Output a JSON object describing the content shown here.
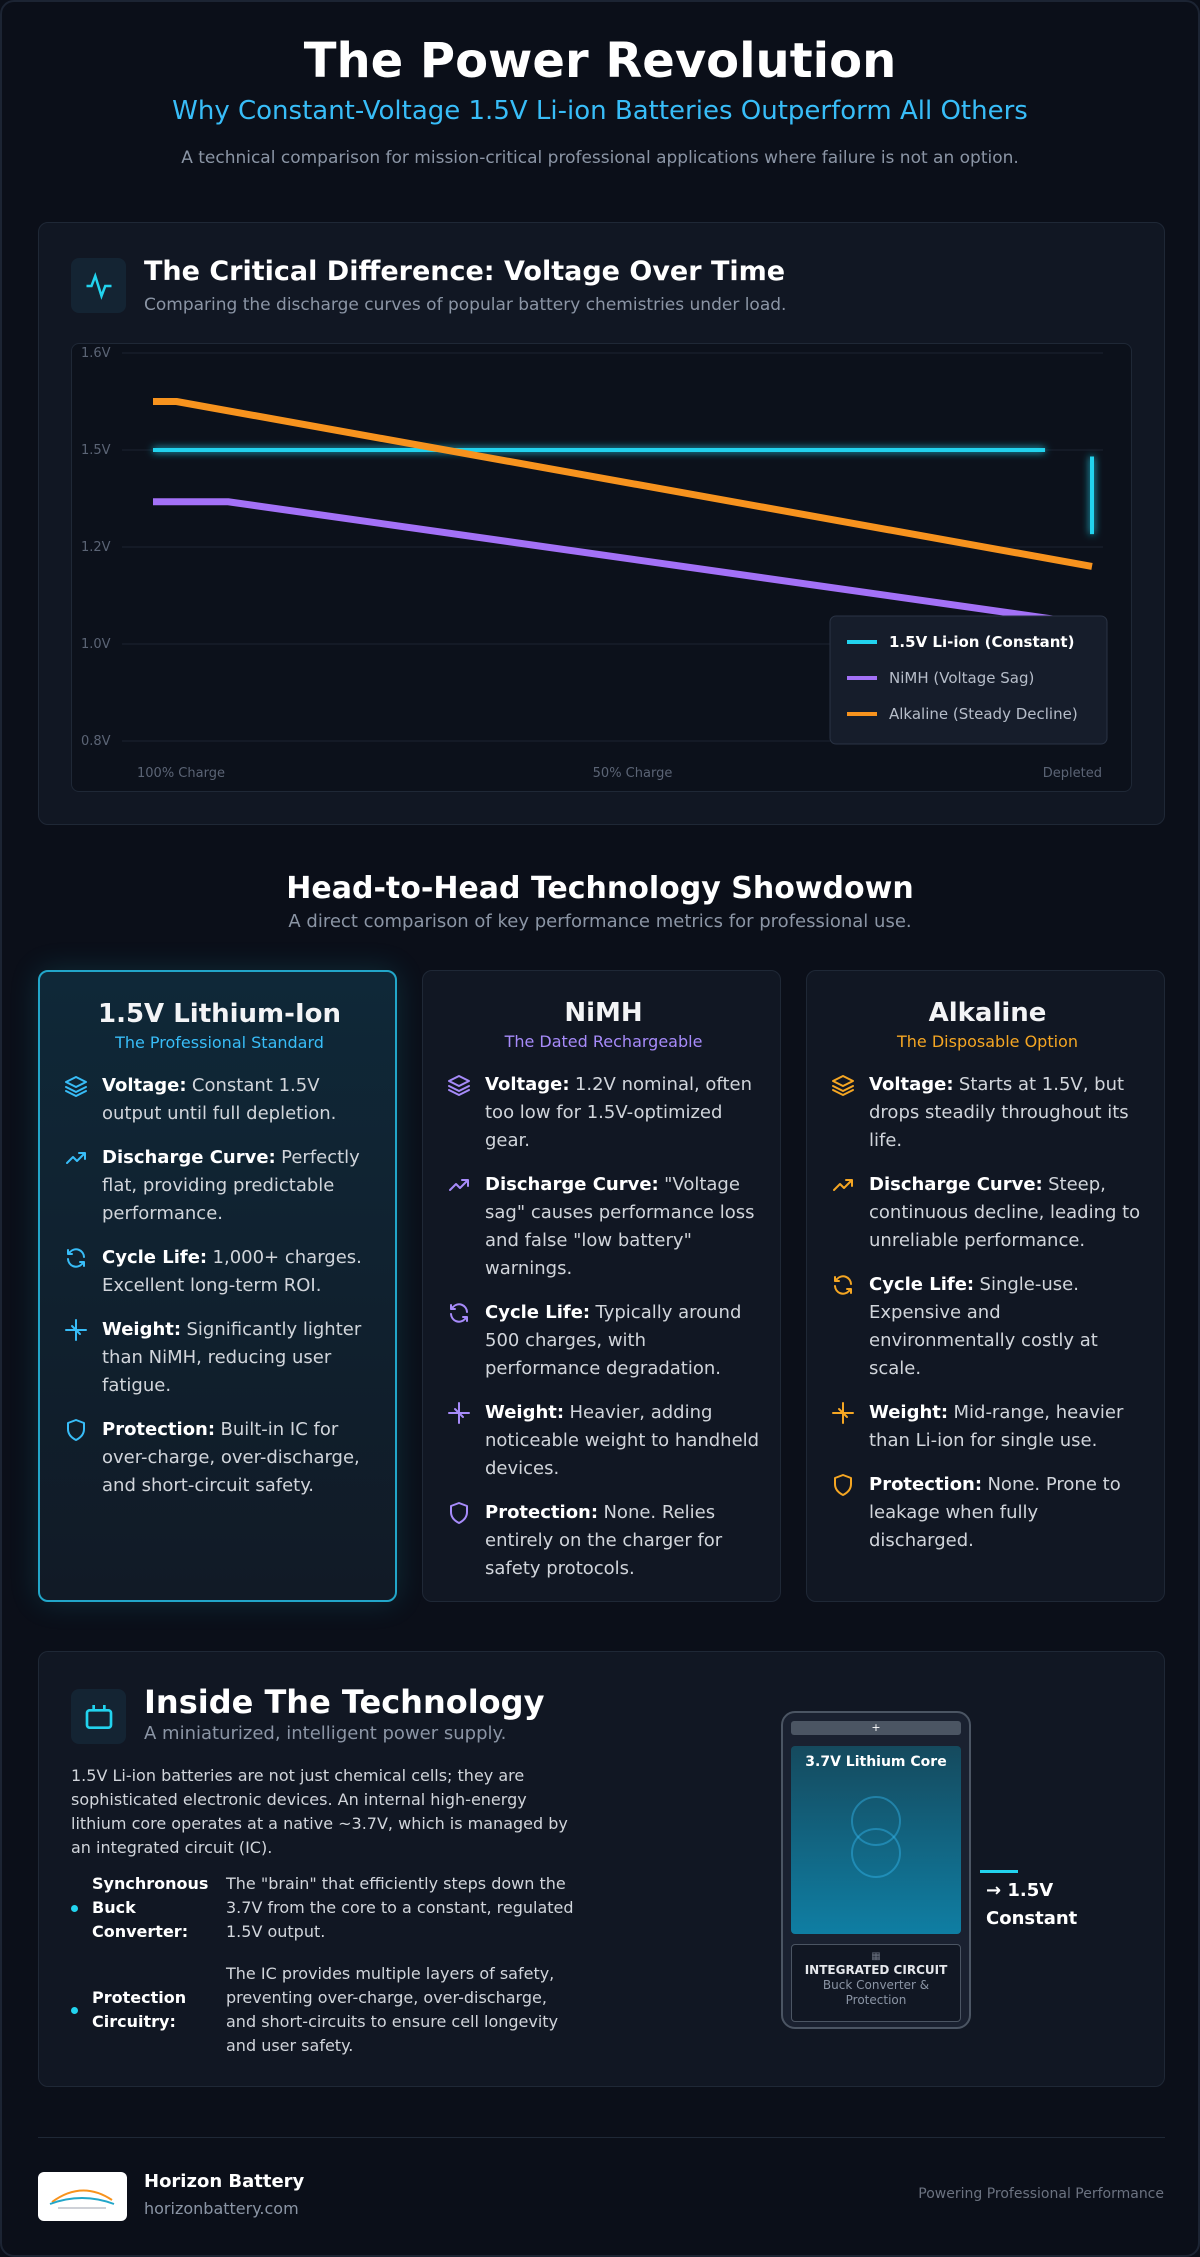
{
  "header": {
    "title": "The Power Revolution",
    "subtitle": "Why Constant-Voltage 1.5V Li-ion Batteries Outperform All Others",
    "tagline": "A technical comparison for mission-critical professional applications where failure is not an option."
  },
  "chart_section": {
    "title": "The Critical Difference: Voltage Over Time",
    "subtitle": "Comparing the discharge curves of popular battery chemistries under load."
  },
  "chart_data": {
    "type": "line",
    "xlim": [
      100,
      0
    ],
    "xticks": [
      {
        "value": 100,
        "label": "100% Charge"
      },
      {
        "value": 50,
        "label": "50% Charge"
      },
      {
        "value": 0,
        "label": "Depleted"
      }
    ],
    "ylim": [
      0.8,
      1.6
    ],
    "yticks": [
      {
        "value": 0.8,
        "label": "0.8V"
      },
      {
        "value": 1.0,
        "label": "1.0V"
      },
      {
        "value": 1.2,
        "label": "1.2V"
      },
      {
        "value": 1.5,
        "label": "1.5V"
      },
      {
        "value": 1.6,
        "label": "1.6V"
      }
    ],
    "grid": true,
    "legend": "lower right",
    "series": [
      {
        "name": "1.5V Li-ion (Constant)",
        "color": "#22d3ee",
        "x": [
          100,
          5,
          3,
          0,
          0
        ],
        "values": [
          1.5,
          1.5,
          null,
          1.48,
          1.24
        ]
      },
      {
        "name": "NiMH (Voltage Sag)",
        "color": "#a371f7",
        "x": [
          100,
          92,
          0
        ],
        "values": [
          1.34,
          1.34,
          1.04
        ]
      },
      {
        "name": "Alkaline (Steady Decline)",
        "color": "#f7931e",
        "x": [
          100,
          97.5,
          0
        ],
        "values": [
          1.55,
          1.55,
          1.16
        ]
      }
    ]
  },
  "showdown": {
    "title": "Head-to-Head Technology Showdown",
    "subtitle": "A direct comparison of key performance metrics for professional use.",
    "cards": [
      {
        "title": "1.5V Lithium-Ion",
        "subtitle": "The Professional Standard",
        "color": "#38bdf8",
        "items": [
          {
            "label": "Voltage:",
            "text": "Constant 1.5V output until full depletion."
          },
          {
            "label": "Discharge Curve:",
            "text": "Perfectly flat, providing predictable performance."
          },
          {
            "label": "Cycle Life:",
            "text": "1,000+ charges. Excellent long-term ROI."
          },
          {
            "label": "Weight:",
            "text": "Significantly lighter than NiMH, reducing user fatigue."
          },
          {
            "label": "Protection:",
            "text": "Built-in IC for over-charge, over-discharge, and short-circuit safety."
          }
        ]
      },
      {
        "title": "NiMH",
        "subtitle": "The Dated Rechargeable",
        "color": "#a78bfa",
        "items": [
          {
            "label": "Voltage:",
            "text": "1.2V nominal, often too low for 1.5V-optimized gear."
          },
          {
            "label": "Discharge Curve:",
            "text": "\"Voltage sag\" causes performance loss and false \"low battery\" warnings."
          },
          {
            "label": "Cycle Life:",
            "text": "Typically around 500 charges, with performance degradation."
          },
          {
            "label": "Weight:",
            "text": "Heavier, adding noticeable weight to handheld devices."
          },
          {
            "label": "Protection:",
            "text": "None. Relies entirely on the charger for safety protocols."
          }
        ]
      },
      {
        "title": "Alkaline",
        "subtitle": "The Disposable Option",
        "color": "#f5a623",
        "items": [
          {
            "label": "Voltage:",
            "text": "Starts at 1.5V, but drops steadily throughout its life."
          },
          {
            "label": "Discharge Curve:",
            "text": "Steep, continuous decline, leading to unreliable performance."
          },
          {
            "label": "Cycle Life:",
            "text": "Single-use. Expensive and environmentally costly at scale."
          },
          {
            "label": "Weight:",
            "text": "Mid-range, heavier than Li-ion for single use."
          },
          {
            "label": "Protection:",
            "text": "None. Prone to leakage when fully discharged."
          }
        ]
      }
    ]
  },
  "technology": {
    "title": "Inside The Technology",
    "subtitle": "A miniaturized, intelligent power supply.",
    "paragraph": "1.5V Li-ion batteries are not just chemical cells; they are sophisticated electronic devices. An internal high-energy lithium core operates at a native ~3.7V, which is managed by an integrated circuit (IC).",
    "features": [
      {
        "label": "Synchronous Buck Converter:",
        "text": "The \"brain\" that efficiently steps down the 3.7V from the core to a constant, regulated 1.5V output."
      },
      {
        "label": "Protection Circuitry:",
        "text": "The IC provides multiple layers of safety, preventing over-charge, over-discharge, and short-circuits to ensure cell longevity and user safety."
      }
    ],
    "diagram": {
      "terminal": "+",
      "core": "3.7V Lithium Core",
      "ic_title": "INTEGRATED CIRCUIT",
      "ic_subtitle": "Buck Converter & Protection",
      "output": "→ 1.5V Constant"
    }
  },
  "footer": {
    "brand": "Horizon Battery",
    "url": "horizonbattery.com",
    "tagline": "Powering Professional Performance"
  }
}
